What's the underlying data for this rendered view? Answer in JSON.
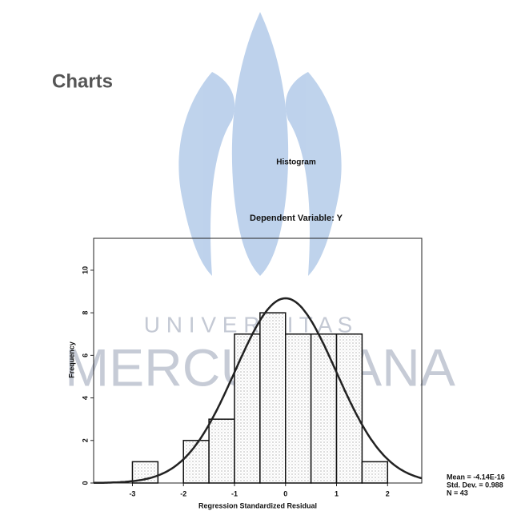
{
  "heading": "Charts",
  "watermark": {
    "top": "U N I V E R S I T A S",
    "bottom": "MERCU BUANA"
  },
  "chart_data": {
    "type": "histogram",
    "title": "Histogram",
    "subtitle": "Dependent Variable: Y",
    "x_label": "Regression Standardized Residual",
    "y_label": "Frequency",
    "bins": [
      -3,
      -2.5,
      -2,
      -1.5,
      -1,
      -0.5,
      0,
      0.5,
      1,
      1.5,
      2
    ],
    "values": [
      1,
      0,
      2,
      3,
      7,
      8,
      7,
      7,
      7,
      1
    ],
    "xlim": [
      -3.76,
      2.67
    ],
    "ylim": [
      0,
      11.5
    ],
    "xticks": [
      -3,
      -2,
      -1,
      0,
      1,
      2
    ],
    "yticks": [
      0,
      2,
      4,
      6,
      8,
      10
    ],
    "stats": [
      {
        "label": "Mean = -4.14E-16",
        "value": -4.14e-16
      },
      {
        "label": "Std. Dev. = 0.988",
        "value": 0.988
      },
      {
        "label": "N = 43",
        "value": 43
      }
    ],
    "color": "#d8d8d8",
    "curve_color": "#222"
  }
}
